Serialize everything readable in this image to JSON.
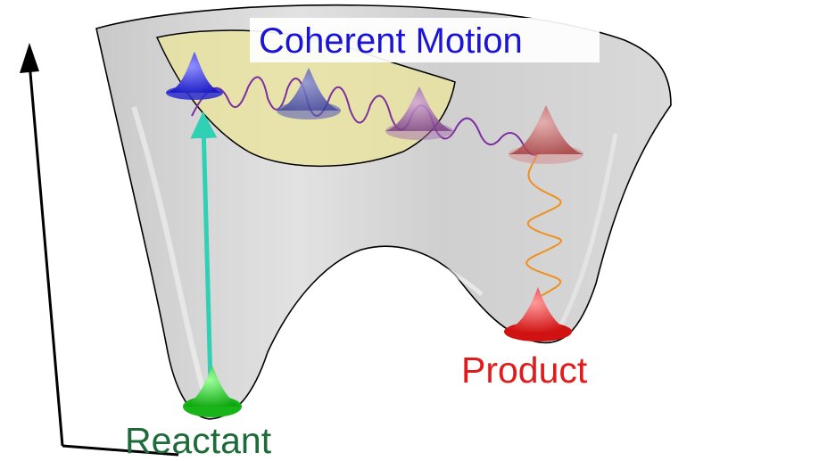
{
  "labels": {
    "coherent_motion": "Coherent Motion",
    "reactant": "Reactant",
    "product": "Product"
  },
  "colors": {
    "coherent_motion": "#1a14d6",
    "reactant": "#1e6b3a",
    "product": "#e01b1b",
    "surface": "#d4d4d4",
    "highlight": "#e8e49c",
    "excitation_arrow": "#2fd0b4",
    "axis": "#000000",
    "wavepacket_blue": "#2a2ad0",
    "wavepacket_purple": "#8a4fa0",
    "wavepacket_red": "#c23b3b",
    "wavepacket_green": "#18b418",
    "relaxation_spiral": "#f09020"
  }
}
